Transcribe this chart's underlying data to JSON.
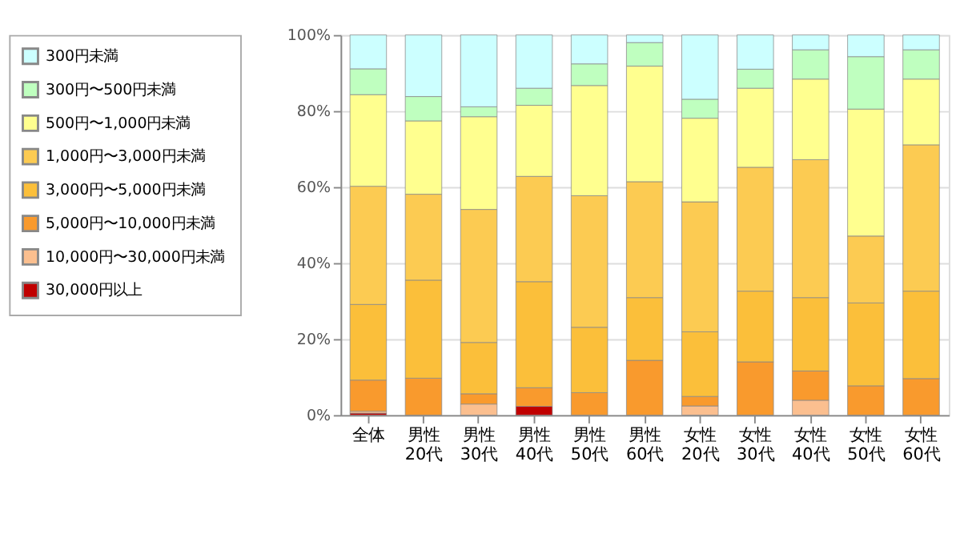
{
  "chart_data": {
    "type": "bar",
    "stacked": true,
    "categories": [
      "全体",
      "男性\n20代",
      "男性\n30代",
      "男性\n40代",
      "男性\n50代",
      "男性\n60代",
      "女性\n20代",
      "女性\n30代",
      "女性\n40代",
      "女性\n50代",
      "女性\n60代"
    ],
    "series": [
      {
        "name": "30,000円以上",
        "color": "#c00000",
        "values": [
          0.5,
          0,
          0,
          2.3,
          0,
          0,
          0,
          0,
          0,
          0,
          0
        ]
      },
      {
        "name": "10,000円〜30,000円未満",
        "color": "#fbbf8f",
        "values": [
          0.5,
          0,
          2.9,
          0,
          0,
          0,
          2.4,
          0,
          3.9,
          0,
          0
        ]
      },
      {
        "name": "5,000円〜10,000円未満",
        "color": "#f99a2d",
        "values": [
          8.2,
          9.7,
          2.7,
          4.9,
          5.9,
          14.4,
          2.5,
          14,
          7.7,
          7.7,
          9.6
        ]
      },
      {
        "name": "3,000円〜5,000円未満",
        "color": "#fbbf3a",
        "values": [
          19.9,
          25.8,
          13.5,
          27.9,
          17.2,
          16.5,
          17,
          18.6,
          19.3,
          21.8,
          23
        ]
      },
      {
        "name": "1,000円〜3,000円未満",
        "color": "#fccb52",
        "values": [
          31.1,
          22.6,
          35,
          27.7,
          34.6,
          30.5,
          34.2,
          32.6,
          36.3,
          17.6,
          38.5
        ]
      },
      {
        "name": "500円〜1,000円未満",
        "color": "#ffff8f",
        "values": [
          24.1,
          19.3,
          24.4,
          18.7,
          29,
          30.4,
          22,
          20.8,
          21.2,
          33.4,
          17.3
        ]
      },
      {
        "name": "300円〜500円未満",
        "color": "#bfffbf",
        "values": [
          6.8,
          6.4,
          2.6,
          4.5,
          5.7,
          6.2,
          5,
          5,
          7.7,
          13.8,
          7.7
        ]
      },
      {
        "name": "300円未満",
        "color": "#ccffff",
        "values": [
          8.9,
          16.2,
          18.9,
          14,
          7.6,
          2,
          16.9,
          9,
          3.9,
          5.7,
          3.9
        ]
      }
    ],
    "ylim": [
      0,
      100
    ],
    "yticks": [
      {
        "value": 0,
        "label": "0%"
      },
      {
        "value": 20,
        "label": "20%"
      },
      {
        "value": 40,
        "label": "40%"
      },
      {
        "value": 60,
        "label": "60%"
      },
      {
        "value": 80,
        "label": "80%"
      },
      {
        "value": 100,
        "label": "100%"
      }
    ],
    "grid": "y",
    "legend": "top left"
  }
}
